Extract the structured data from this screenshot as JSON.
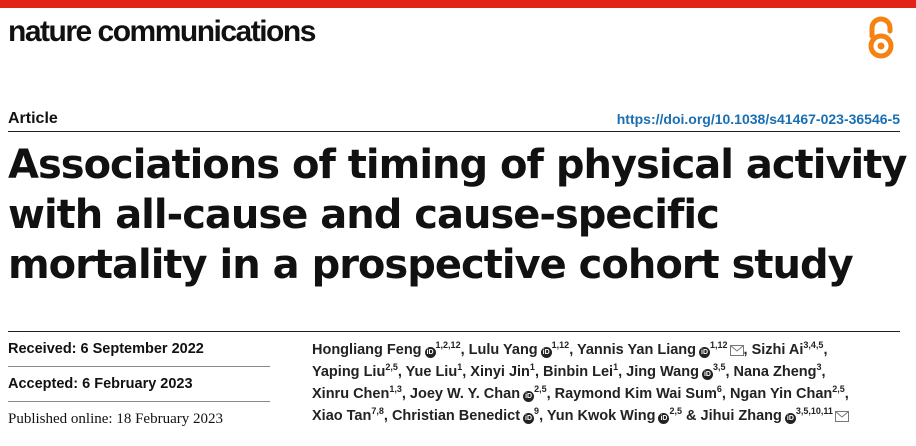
{
  "journal": "nature communications",
  "article_type": "Article",
  "doi": "https://doi.org/10.1038/s41467-023-36546-5",
  "title": "Associations of timing of physical activity with all-cause and cause-specific mortality in a prospective cohort study",
  "dates": {
    "received": "Received: 6 September 2022",
    "accepted": "Accepted: 6 February 2023",
    "published": "Published online: 18 February 2023"
  },
  "authors": [
    {
      "name": "Hongliang Feng",
      "aff": "1,2,12",
      "orcid": true,
      "mail": false,
      "sep": ", "
    },
    {
      "name": "Lulu Yang",
      "aff": "1,12",
      "orcid": true,
      "mail": false,
      "sep": ", "
    },
    {
      "name": "Yannis Yan Liang",
      "aff": "1,12",
      "orcid": true,
      "mail": true,
      "sep": ", "
    },
    {
      "name": "Sizhi Ai",
      "aff": "3,4,5",
      "orcid": false,
      "mail": false,
      "sep": ", "
    },
    {
      "name": "Yaping Liu",
      "aff": "2,5",
      "orcid": false,
      "mail": false,
      "sep": ", "
    },
    {
      "name": "Yue Liu",
      "aff": "1",
      "orcid": false,
      "mail": false,
      "sep": ", "
    },
    {
      "name": "Xinyi Jin",
      "aff": "1",
      "orcid": false,
      "mail": false,
      "sep": ", "
    },
    {
      "name": "Binbin Lei",
      "aff": "1",
      "orcid": false,
      "mail": false,
      "sep": ", "
    },
    {
      "name": "Jing Wang",
      "aff": "3,5",
      "orcid": true,
      "mail": false,
      "sep": ", "
    },
    {
      "name": "Nana Zheng",
      "aff": "3",
      "orcid": false,
      "mail": false,
      "sep": ", "
    },
    {
      "name": "Xinru Chen",
      "aff": "1,3",
      "orcid": false,
      "mail": false,
      "sep": ", "
    },
    {
      "name": "Joey W. Y. Chan",
      "aff": "2,5",
      "orcid": true,
      "mail": false,
      "sep": ", "
    },
    {
      "name": "Raymond Kim Wai Sum",
      "aff": "6",
      "orcid": false,
      "mail": false,
      "sep": ", "
    },
    {
      "name": "Ngan Yin Chan",
      "aff": "2,5",
      "orcid": false,
      "mail": false,
      "sep": ", "
    },
    {
      "name": "Xiao Tan",
      "aff": "7,8",
      "orcid": false,
      "mail": false,
      "sep": ", "
    },
    {
      "name": "Christian Benedict",
      "aff": "9",
      "orcid": true,
      "mail": false,
      "sep": ", "
    },
    {
      "name": "Yun Kwok Wing",
      "aff": "2,5",
      "orcid": true,
      "mail": false,
      "sep": " & "
    },
    {
      "name": "Jihui Zhang",
      "aff": "3,5,10,11",
      "orcid": true,
      "mail": true,
      "sep": ""
    }
  ],
  "icons": {
    "open_access": "open-access-icon",
    "orcid": "orcid-icon",
    "mail": "mail-icon"
  },
  "colors": {
    "accent_red": "#e2231a",
    "open_access_orange": "#f68212",
    "doi_blue": "#1a6fb3"
  }
}
